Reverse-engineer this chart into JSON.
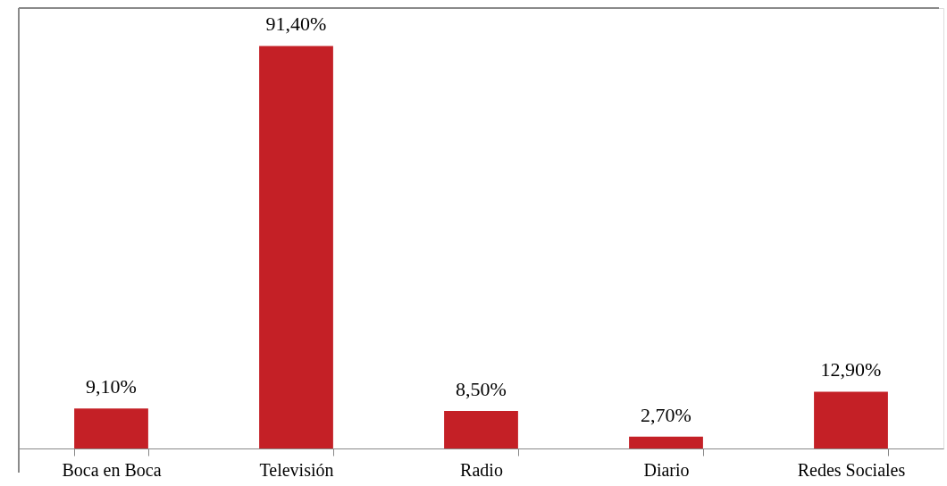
{
  "chart_data": {
    "type": "bar",
    "categories": [
      "Boca en Boca",
      "Televisión",
      "Radio",
      "Diario",
      "Redes Sociales",
      null
    ],
    "values": [
      9.1,
      91.4,
      8.5,
      2.7,
      12.9,
      null
    ],
    "value_labels": [
      "9,10%",
      "91,40%",
      "8,50%",
      "2,70%",
      "12,90%",
      null
    ],
    "color": "#c42026",
    "grid": false
  }
}
